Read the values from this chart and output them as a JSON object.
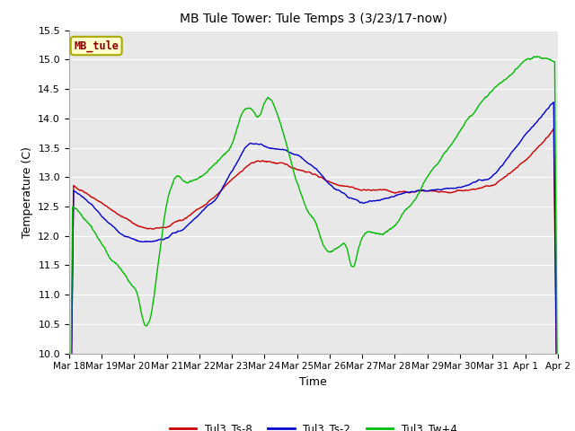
{
  "title": "MB Tule Tower: Tule Temps 3 (3/23/17-now)",
  "xlabel": "Time",
  "ylabel": "Temperature (C)",
  "ylim": [
    10.0,
    15.5
  ],
  "yticks": [
    10.0,
    10.5,
    11.0,
    11.5,
    12.0,
    12.5,
    13.0,
    13.5,
    14.0,
    14.5,
    15.0,
    15.5
  ],
  "xtick_labels": [
    "Mar 18",
    "Mar 19",
    "Mar 20",
    "Mar 21",
    "Mar 22",
    "Mar 23",
    "Mar 24",
    "Mar 25",
    "Mar 26",
    "Mar 27",
    "Mar 28",
    "Mar 29",
    "Mar 30",
    "Mar 31",
    "Apr 1",
    "Apr 2"
  ],
  "color_red": "#cc0000",
  "color_blue": "#0000cc",
  "color_green": "#00bb00",
  "legend_label_red": "Tul3_Ts-8",
  "legend_label_blue": "Tul3_Ts-2",
  "legend_label_green": "Tul3_Tw+4",
  "box_label": "MB_tule",
  "box_facecolor": "#ffffcc",
  "box_edgecolor": "#aaaa00",
  "box_textcolor": "#880000",
  "fig_facecolor": "#ffffff",
  "plot_bg_color": "#e8e8e8",
  "grid_color": "#ffffff"
}
